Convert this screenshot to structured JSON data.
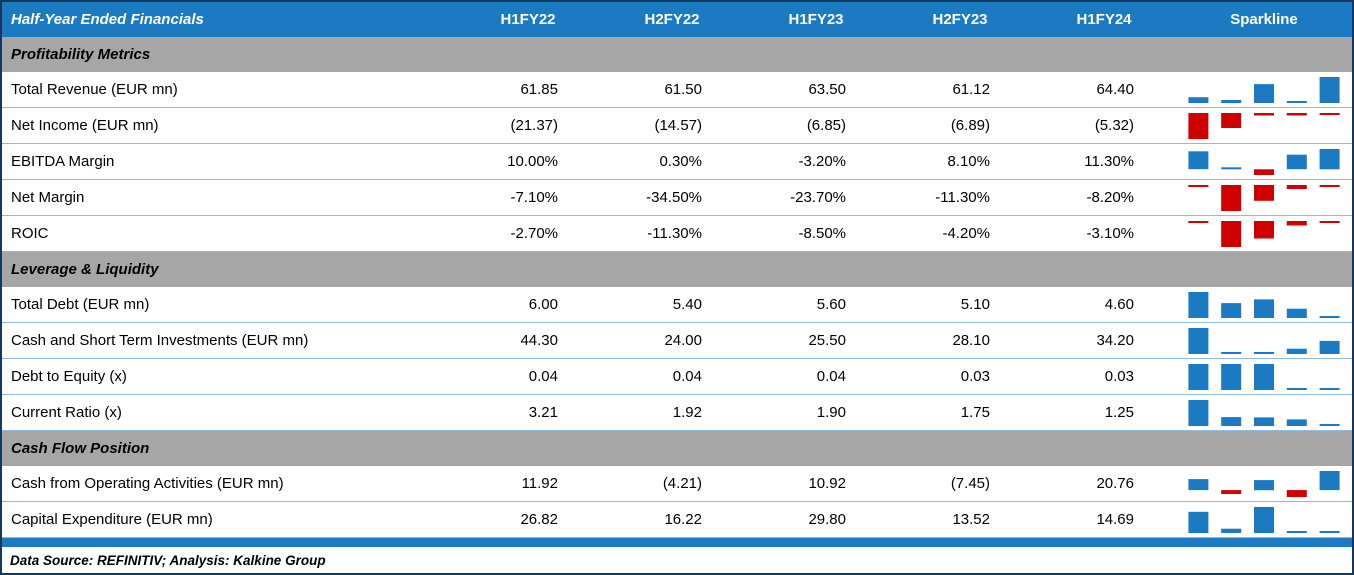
{
  "chart_data": {
    "type": "table",
    "title": "Half-Year Ended Financials",
    "columns": [
      "H1FY22",
      "H2FY22",
      "H1FY23",
      "H2FY23",
      "H1FY24"
    ],
    "sparkline_header": "Sparkline",
    "sections": [
      {
        "label": "Profitability Metrics",
        "rows": [
          {
            "label": "Total Revenue (EUR mn)",
            "display": [
              "61.85",
              "61.50",
              "63.50",
              "61.12",
              "64.40"
            ],
            "values": [
              61.85,
              61.5,
              63.5,
              61.12,
              64.4
            ]
          },
          {
            "label": "Net Income (EUR mn)",
            "display": [
              "(21.37)",
              "(14.57)",
              "(6.85)",
              "(6.89)",
              "(5.32)"
            ],
            "values": [
              -21.37,
              -14.57,
              -6.85,
              -6.89,
              -5.32
            ]
          },
          {
            "label": "EBITDA Margin",
            "display": [
              "10.00%",
              "0.30%",
              "-3.20%",
              "8.10%",
              "11.30%"
            ],
            "values": [
              10.0,
              0.3,
              -3.2,
              8.1,
              11.3
            ]
          },
          {
            "label": "Net Margin",
            "display": [
              "-7.10%",
              "-34.50%",
              "-23.70%",
              "-11.30%",
              "-8.20%"
            ],
            "values": [
              -7.1,
              -34.5,
              -23.7,
              -11.3,
              -8.2
            ]
          },
          {
            "label": "ROIC",
            "display": [
              "-2.70%",
              "-11.30%",
              "-8.50%",
              "-4.20%",
              "-3.10%"
            ],
            "values": [
              -2.7,
              -11.3,
              -8.5,
              -4.2,
              -3.1
            ]
          }
        ]
      },
      {
        "label": "Leverage & Liquidity",
        "rows": [
          {
            "label": "Total Debt (EUR mn)",
            "display": [
              "6.00",
              "5.40",
              "5.60",
              "5.10",
              "4.60"
            ],
            "values": [
              6.0,
              5.4,
              5.6,
              5.1,
              4.6
            ]
          },
          {
            "label": "Cash and Short Term Investments (EUR mn)",
            "display": [
              "44.30",
              "24.00",
              "25.50",
              "28.10",
              "34.20"
            ],
            "values": [
              44.3,
              24.0,
              25.5,
              28.1,
              34.2
            ]
          },
          {
            "label": "Debt to Equity (x)",
            "display": [
              "0.04",
              "0.04",
              "0.04",
              "0.03",
              "0.03"
            ],
            "values": [
              0.04,
              0.04,
              0.04,
              0.03,
              0.03
            ]
          },
          {
            "label": "Current Ratio (x)",
            "display": [
              "3.21",
              "1.92",
              "1.90",
              "1.75",
              "1.25"
            ],
            "values": [
              3.21,
              1.92,
              1.9,
              1.75,
              1.25
            ]
          }
        ]
      },
      {
        "label": "Cash Flow Position",
        "rows": [
          {
            "label": "Cash from Operating Activities (EUR mn)",
            "display": [
              "11.92",
              "(4.21)",
              "10.92",
              "(7.45)",
              "20.76"
            ],
            "values": [
              11.92,
              -4.21,
              10.92,
              -7.45,
              20.76
            ]
          },
          {
            "label": "Capital Expenditure (EUR mn)",
            "display": [
              "26.82",
              "16.22",
              "29.80",
              "13.52",
              "14.69"
            ],
            "values": [
              26.82,
              16.22,
              29.8,
              13.52,
              14.69
            ]
          }
        ]
      }
    ],
    "footer": "Data Source: REFINITIV; Analysis: Kalkine Group",
    "colors": {
      "header_bg": "#1B7AC2",
      "section_bg": "#A6A6A6",
      "positive_bar": "#1B7AC2",
      "negative_bar": "#D00000",
      "row_divider": "#8FB9E0"
    }
  }
}
